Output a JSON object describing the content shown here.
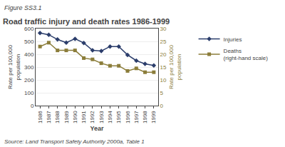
{
  "chart_data": {
    "type": "line",
    "title": "Road traffic injury and death rates 1986-1999",
    "annotations": [
      "Figure SS3.1",
      "Source: Land Transport Safety Authority 2000a, Table 1"
    ],
    "xlabel": "Year",
    "ylabel": "Rate per 100,000\npopulation",
    "y2label": "Rate per 100,000\npopulation",
    "x": [
      1986,
      1987,
      1988,
      1989,
      1990,
      1991,
      1992,
      1993,
      1994,
      1995,
      1996,
      1997,
      1998,
      1999
    ],
    "xlim": [
      1985.5,
      1999.5
    ],
    "xticks": [
      1986,
      1987,
      1988,
      1989,
      1990,
      1991,
      1992,
      1993,
      1994,
      1995,
      1996,
      1997,
      1998,
      1999
    ],
    "ylim": [
      0,
      600
    ],
    "yticks": [
      0,
      100,
      200,
      300,
      400,
      500,
      600
    ],
    "y2lim": [
      0,
      30
    ],
    "y2ticks": [
      0,
      5,
      10,
      15,
      20,
      25,
      30
    ],
    "grid": true,
    "legend": "right",
    "series": [
      {
        "name": "Injuries",
        "color": "#2b3d6b",
        "marker": "diamond",
        "values": [
          565,
          552,
          515,
          490,
          520,
          488,
          430,
          425,
          460,
          460,
          395,
          350,
          325,
          312
        ]
      },
      {
        "name": "Deaths\n(right-hand scale)",
        "color": "#8b7d3a",
        "marker": "square",
        "axis": "y2",
        "values": [
          23.0,
          24.5,
          21.5,
          21.5,
          21.5,
          18.5,
          18.0,
          16.5,
          15.5,
          15.5,
          13.5,
          14.5,
          13.0,
          13.0
        ]
      }
    ]
  }
}
